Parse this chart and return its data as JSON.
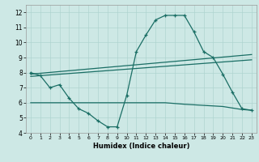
{
  "xlabel": "Humidex (Indice chaleur)",
  "bg_color": "#cde8e5",
  "grid_color": "#afd4d0",
  "line_color": "#1a6e65",
  "xlim": [
    -0.5,
    23.5
  ],
  "ylim": [
    4,
    12.5
  ],
  "xticks": [
    0,
    1,
    2,
    3,
    4,
    5,
    6,
    7,
    8,
    9,
    10,
    11,
    12,
    13,
    14,
    15,
    16,
    17,
    18,
    19,
    20,
    21,
    22,
    23
  ],
  "yticks": [
    4,
    5,
    6,
    7,
    8,
    9,
    10,
    11,
    12
  ],
  "line1_x": [
    0,
    1,
    2,
    3,
    4,
    5,
    6,
    7,
    8,
    9,
    10,
    11,
    12,
    13,
    14,
    15,
    16,
    17,
    18,
    19,
    20,
    21,
    22,
    23
  ],
  "line1_y": [
    8.0,
    7.8,
    7.0,
    7.2,
    6.3,
    5.6,
    5.3,
    4.8,
    4.4,
    4.4,
    6.5,
    9.4,
    10.5,
    11.5,
    11.8,
    11.8,
    11.8,
    10.7,
    9.4,
    9.0,
    7.9,
    6.7,
    5.6,
    5.5
  ],
  "line2_x": [
    0,
    23
  ],
  "line2_y": [
    7.9,
    9.2
  ],
  "line3_x": [
    0,
    23
  ],
  "line3_y": [
    7.75,
    8.85
  ],
  "line4_x": [
    0,
    10,
    14,
    16,
    20,
    22,
    23
  ],
  "line4_y": [
    6.0,
    6.0,
    6.0,
    5.9,
    5.75,
    5.55,
    5.5
  ]
}
